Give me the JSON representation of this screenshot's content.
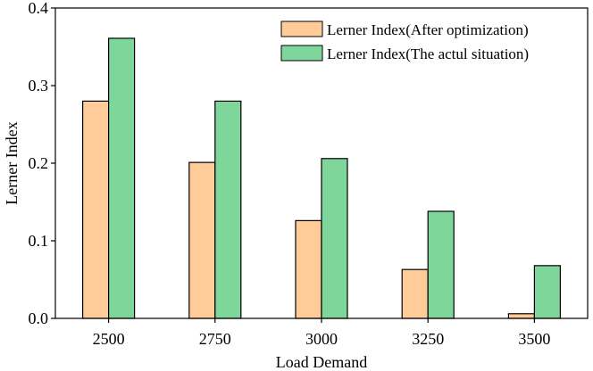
{
  "chart_data": {
    "type": "bar",
    "title": "",
    "xlabel": "Load Demand",
    "ylabel": "Lerner Index",
    "categories": [
      "2500",
      "2750",
      "3000",
      "3250",
      "3500"
    ],
    "ylim": [
      0,
      0.4
    ],
    "yticks": [
      "0.0",
      "0.1",
      "0.2",
      "0.3",
      "0.4"
    ],
    "legend_position": "top-right",
    "grid": false,
    "series": [
      {
        "name": "Lerner Index(After optimization)",
        "color": "#FFCC99",
        "values": [
          0.28,
          0.201,
          0.126,
          0.063,
          0.006
        ]
      },
      {
        "name": "Lerner Index(The actul situation)",
        "color": "#7FD69A",
        "values": [
          0.361,
          0.28,
          0.206,
          0.138,
          0.068
        ]
      }
    ]
  }
}
